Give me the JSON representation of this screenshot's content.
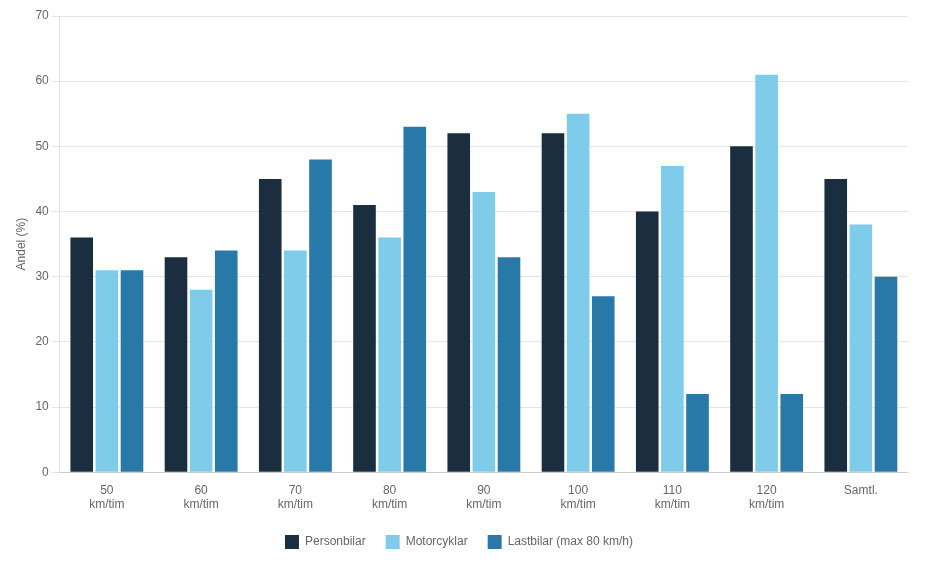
{
  "chart_data": {
    "type": "bar",
    "ylabel": "Andel (%)",
    "categories": [
      "50\nkm/tim",
      "60\nkm/tim",
      "70\nkm/tim",
      "80\nkm/tim",
      "90\nkm/tim",
      "100\nkm/tim",
      "110\nkm/tim",
      "120\nkm/tim",
      "Samtl."
    ],
    "series": [
      {
        "name": "Personbilar",
        "color": "#1b2e40",
        "values": [
          36,
          33,
          45,
          41,
          52,
          52,
          40,
          50,
          45
        ]
      },
      {
        "name": "Motorcyklar",
        "color": "#7eccea",
        "values": [
          31,
          28,
          34,
          36,
          43,
          55,
          47,
          61,
          38
        ]
      },
      {
        "name": "Lastbilar (max 80 km/h)",
        "color": "#2878a8",
        "values": [
          31,
          34,
          48,
          53,
          33,
          27,
          12,
          12,
          30
        ]
      }
    ],
    "ylim": [
      0,
      70
    ],
    "yticks": [
      0,
      10,
      20,
      30,
      40,
      50,
      60,
      70
    ],
    "grid": true,
    "legend": "bottom"
  }
}
